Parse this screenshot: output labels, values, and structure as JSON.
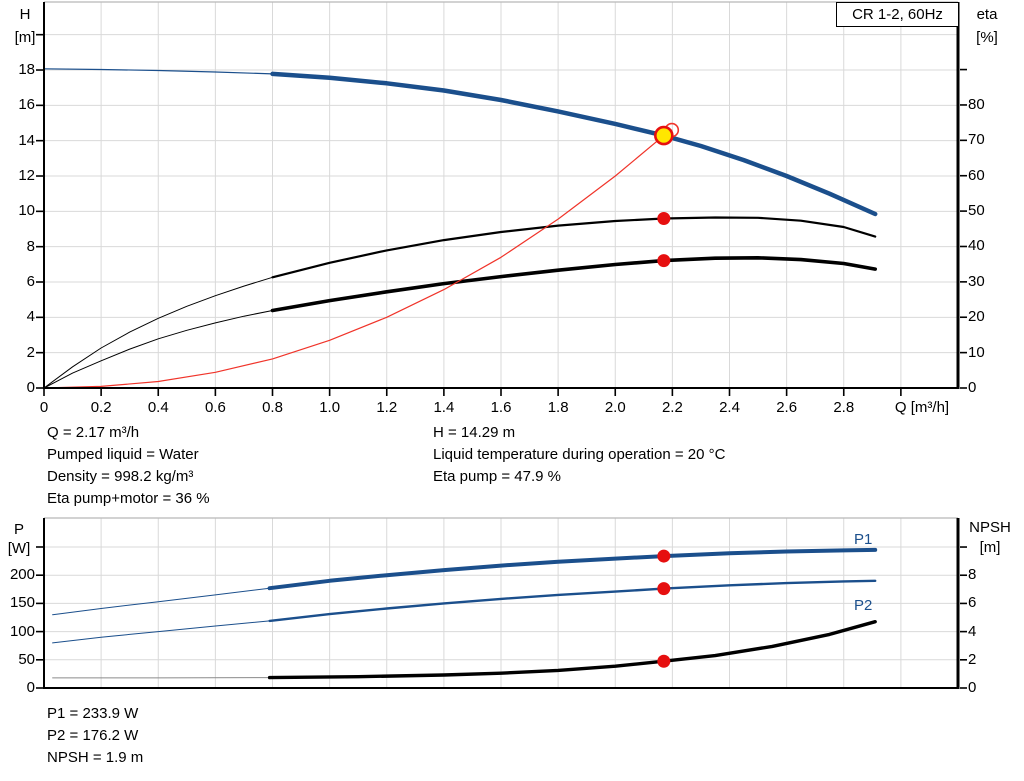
{
  "window": {
    "product_box_label": "CR 1-2, 60Hz"
  },
  "colors": {
    "curve_blue": "#1b4f8c",
    "curve_black": "#000000",
    "curve_gray": "#8a8a8a",
    "red_line": "#f0342a",
    "red_dot": "#e60f0f",
    "duty_yellow": "#ffe600",
    "grid": "#d9d9d9",
    "frame": "#000000",
    "border_top": "#b8b8b8",
    "label_blue": "#1b4f8c",
    "text": "#000000"
  },
  "top_chart": {
    "left_axis_title": [
      "H",
      "[m]"
    ],
    "right_axis_title": [
      "eta",
      "[%]"
    ],
    "x_axis_title": "Q [m³/h]",
    "left_ticks": [
      {
        "v": 0,
        "label": "0"
      },
      {
        "v": 2,
        "label": "2"
      },
      {
        "v": 4,
        "label": "4"
      },
      {
        "v": 6,
        "label": "6"
      },
      {
        "v": 8,
        "label": "8"
      },
      {
        "v": 10,
        "label": "10"
      },
      {
        "v": 12,
        "label": "12"
      },
      {
        "v": 14,
        "label": "14"
      },
      {
        "v": 16,
        "label": "16"
      },
      {
        "v": 18,
        "label": "18"
      },
      {
        "v": 20,
        "label": ""
      }
    ],
    "right_ticks": [
      {
        "v": 0,
        "label": "0"
      },
      {
        "v": 10,
        "label": "10"
      },
      {
        "v": 20,
        "label": "20"
      },
      {
        "v": 30,
        "label": "30"
      },
      {
        "v": 40,
        "label": "40"
      },
      {
        "v": 50,
        "label": "50"
      },
      {
        "v": 60,
        "label": "60"
      },
      {
        "v": 70,
        "label": "70"
      },
      {
        "v": 80,
        "label": "80"
      },
      {
        "v": 90,
        "label": ""
      }
    ],
    "x_ticks": [
      {
        "v": 0,
        "label": "0"
      },
      {
        "v": 0.2,
        "label": "0.2"
      },
      {
        "v": 0.4,
        "label": "0.4"
      },
      {
        "v": 0.6,
        "label": "0.6"
      },
      {
        "v": 0.8,
        "label": "0.8"
      },
      {
        "v": 1.0,
        "label": "1.0"
      },
      {
        "v": 1.2,
        "label": "1.2"
      },
      {
        "v": 1.4,
        "label": "1.4"
      },
      {
        "v": 1.6,
        "label": "1.6"
      },
      {
        "v": 1.8,
        "label": "1.8"
      },
      {
        "v": 2.0,
        "label": "2.0"
      },
      {
        "v": 2.2,
        "label": "2.2"
      },
      {
        "v": 2.4,
        "label": "2.4"
      },
      {
        "v": 2.6,
        "label": "2.6"
      },
      {
        "v": 2.8,
        "label": "2.8"
      },
      {
        "v": 3.0,
        "label": ""
      }
    ]
  },
  "bottom_chart": {
    "left_axis_title": [
      "P",
      "[W]"
    ],
    "right_axis_title": [
      "NPSH",
      "[m]"
    ],
    "left_ticks": [
      {
        "v": 0,
        "label": "0"
      },
      {
        "v": 50,
        "label": "50"
      },
      {
        "v": 100,
        "label": "100"
      },
      {
        "v": 150,
        "label": "150"
      },
      {
        "v": 200,
        "label": "200"
      },
      {
        "v": 250,
        "label": ""
      }
    ],
    "right_ticks": [
      {
        "v": 0,
        "label": "0"
      },
      {
        "v": 2,
        "label": "2"
      },
      {
        "v": 4,
        "label": "4"
      },
      {
        "v": 6,
        "label": "6"
      },
      {
        "v": 8,
        "label": "8"
      },
      {
        "v": 10,
        "label": ""
      }
    ],
    "x_ticks": [
      {
        "v": 0.2,
        "label": ""
      },
      {
        "v": 0.4,
        "label": ""
      },
      {
        "v": 0.6,
        "label": ""
      },
      {
        "v": 0.8,
        "label": ""
      },
      {
        "v": 1.0,
        "label": ""
      },
      {
        "v": 1.2,
        "label": ""
      },
      {
        "v": 1.4,
        "label": ""
      },
      {
        "v": 1.6,
        "label": ""
      },
      {
        "v": 1.8,
        "label": ""
      },
      {
        "v": 2.0,
        "label": ""
      },
      {
        "v": 2.2,
        "label": ""
      },
      {
        "v": 2.4,
        "label": ""
      },
      {
        "v": 2.6,
        "label": ""
      },
      {
        "v": 2.8,
        "label": ""
      },
      {
        "v": 3.0,
        "label": ""
      }
    ],
    "curve_labels": [
      {
        "text": "P1"
      },
      {
        "text": "P2"
      }
    ]
  },
  "info_top_left": [
    "Q = 2.17 m³/h",
    "Pumped liquid = Water",
    "Density = 998.2 kg/m³",
    "Eta pump+motor = 36 %"
  ],
  "info_top_right": [
    "H = 14.29 m",
    "Liquid temperature during operation = 20 °C",
    "Eta pump = 47.9 %"
  ],
  "info_bottom": [
    "P1 = 233.9 W",
    "P2 = 176.2 W",
    "NPSH = 1.9 m"
  ],
  "chart_data": [
    {
      "type": "line",
      "title": "CR 1-2, 60Hz head and efficiency curves",
      "xlabel": "Q [m³/h]",
      "x_range": [
        0,
        3.2
      ],
      "y_left": {
        "label": "H [m]",
        "range": [
          0,
          21.85
        ]
      },
      "y_right": {
        "label": "eta [%]",
        "range": [
          0,
          109.1
        ]
      },
      "grid": true,
      "duty_point": {
        "q": 2.17,
        "h": 14.29,
        "eta_pump": 47.9,
        "eta_pump_motor": 36
      },
      "series": [
        {
          "name": "h-curve-extended",
          "axis": "left",
          "color": "curve_blue",
          "width": 1.2,
          "points": [
            [
              0,
              18.07
            ],
            [
              0.2,
              18.03
            ],
            [
              0.4,
              17.97
            ],
            [
              0.6,
              17.89
            ],
            [
              0.8,
              17.78
            ]
          ]
        },
        {
          "name": "h-curve",
          "axis": "left",
          "color": "curve_blue",
          "width": 4.5,
          "points": [
            [
              0.8,
              17.78
            ],
            [
              1.0,
              17.56
            ],
            [
              1.2,
              17.25
            ],
            [
              1.4,
              16.84
            ],
            [
              1.6,
              16.3
            ],
            [
              1.8,
              15.66
            ],
            [
              2.0,
              14.95
            ],
            [
              2.17,
              14.29
            ],
            [
              2.3,
              13.7
            ],
            [
              2.45,
              12.9
            ],
            [
              2.6,
              12.0
            ],
            [
              2.75,
              11.0
            ],
            [
              2.91,
              9.85
            ]
          ]
        },
        {
          "name": "eta-pump-curve-extended",
          "axis": "right",
          "color": "curve_black",
          "width": 1,
          "points": [
            [
              0,
              0
            ],
            [
              0.1,
              6.0
            ],
            [
              0.2,
              11.3
            ],
            [
              0.3,
              15.8
            ],
            [
              0.4,
              19.7
            ],
            [
              0.5,
              23.1
            ],
            [
              0.6,
              26.1
            ],
            [
              0.7,
              28.8
            ],
            [
              0.8,
              31.3
            ]
          ]
        },
        {
          "name": "eta-pump-curve",
          "axis": "right",
          "color": "curve_black",
          "width": 2.2,
          "points": [
            [
              0.8,
              31.3
            ],
            [
              1.0,
              35.4
            ],
            [
              1.2,
              38.9
            ],
            [
              1.4,
              41.8
            ],
            [
              1.6,
              44.1
            ],
            [
              1.8,
              45.9
            ],
            [
              2.0,
              47.2
            ],
            [
              2.17,
              47.9
            ],
            [
              2.35,
              48.2
            ],
            [
              2.5,
              48.1
            ],
            [
              2.65,
              47.3
            ],
            [
              2.8,
              45.5
            ],
            [
              2.91,
              42.8
            ]
          ]
        },
        {
          "name": "eta-pump-motor-curve-extended",
          "axis": "right",
          "color": "curve_black",
          "width": 1,
          "points": [
            [
              0,
              0
            ],
            [
              0.1,
              4.2
            ],
            [
              0.2,
              7.7
            ],
            [
              0.3,
              11.0
            ],
            [
              0.4,
              13.9
            ],
            [
              0.5,
              16.3
            ],
            [
              0.6,
              18.4
            ],
            [
              0.7,
              20.3
            ],
            [
              0.8,
              21.9
            ]
          ]
        },
        {
          "name": "eta-pump-motor-curve",
          "axis": "right",
          "color": "curve_black",
          "width": 3.6,
          "points": [
            [
              0.8,
              21.9
            ],
            [
              1.0,
              24.7
            ],
            [
              1.2,
              27.2
            ],
            [
              1.4,
              29.5
            ],
            [
              1.6,
              31.5
            ],
            [
              1.8,
              33.3
            ],
            [
              2.0,
              34.9
            ],
            [
              2.17,
              36.0
            ],
            [
              2.35,
              36.7
            ],
            [
              2.5,
              36.8
            ],
            [
              2.65,
              36.3
            ],
            [
              2.8,
              35.2
            ],
            [
              2.91,
              33.6
            ]
          ]
        },
        {
          "name": "system-curve",
          "axis": "left",
          "color": "red_line",
          "width": 1.2,
          "points": [
            [
              0,
              0
            ],
            [
              0.2,
              0.09
            ],
            [
              0.4,
              0.37
            ],
            [
              0.6,
              0.89
            ],
            [
              0.8,
              1.65
            ],
            [
              1.0,
              2.7
            ],
            [
              1.2,
              4.0
            ],
            [
              1.4,
              5.57
            ],
            [
              1.6,
              7.4
            ],
            [
              1.8,
              9.56
            ],
            [
              2.0,
              12.0
            ],
            [
              2.17,
              14.29
            ],
            [
              2.198,
              14.6
            ]
          ]
        }
      ],
      "markers": [
        {
          "shape": "open",
          "name": "requested-duty-point",
          "axis": "left",
          "q": 2.198,
          "v": 14.6
        },
        {
          "shape": "dot",
          "name": "eta-pump-point",
          "axis": "right",
          "q": 2.17,
          "v": 47.9
        },
        {
          "shape": "dot",
          "name": "eta-pump-motor-point",
          "axis": "right",
          "q": 2.17,
          "v": 36.0
        },
        {
          "shape": "duty",
          "name": "duty-point",
          "axis": "left",
          "q": 2.17,
          "v": 14.29
        }
      ]
    },
    {
      "type": "line",
      "title": "Power and NPSH curves",
      "xlabel": "Q [m³/h]",
      "x_range": [
        0,
        3.2
      ],
      "y_left": {
        "label": "P [W]",
        "range": [
          0,
          301.4
        ]
      },
      "y_right": {
        "label": "NPSH [m]",
        "range": [
          0,
          12.06
        ]
      },
      "grid": true,
      "duty_values": {
        "p1": 233.9,
        "p2": 176.2,
        "npsh": 1.9
      },
      "series": [
        {
          "name": "p1-curve-extended",
          "axis": "left",
          "color": "curve_blue",
          "width": 1,
          "points": [
            [
              0.03,
              130
            ],
            [
              0.2,
              141
            ],
            [
              0.4,
              153
            ],
            [
              0.6,
              165
            ],
            [
              0.79,
              177
            ]
          ]
        },
        {
          "name": "p1-curve",
          "axis": "left",
          "color": "curve_blue",
          "width": 4,
          "points": [
            [
              0.79,
              177
            ],
            [
              1.0,
              190
            ],
            [
              1.2,
              200
            ],
            [
              1.4,
              209
            ],
            [
              1.6,
              217
            ],
            [
              1.8,
              224
            ],
            [
              2.0,
              229.5
            ],
            [
              2.17,
              233.9
            ],
            [
              2.4,
              239
            ],
            [
              2.6,
              242
            ],
            [
              2.8,
              244
            ],
            [
              2.91,
              244.8
            ]
          ]
        },
        {
          "name": "p2-curve-extended",
          "axis": "left",
          "color": "curve_blue",
          "width": 1,
          "points": [
            [
              0.03,
              80
            ],
            [
              0.2,
              90
            ],
            [
              0.4,
              100
            ],
            [
              0.6,
              110
            ],
            [
              0.79,
              119
            ]
          ]
        },
        {
          "name": "p2-curve",
          "axis": "left",
          "color": "curve_blue",
          "width": 2.4,
          "points": [
            [
              0.79,
              119
            ],
            [
              1.0,
              131
            ],
            [
              1.2,
              141
            ],
            [
              1.4,
              150
            ],
            [
              1.6,
              158
            ],
            [
              1.8,
              165
            ],
            [
              2.0,
              171
            ],
            [
              2.17,
              176.2
            ],
            [
              2.4,
              182
            ],
            [
              2.6,
              186
            ],
            [
              2.8,
              189
            ],
            [
              2.91,
              190
            ]
          ]
        },
        {
          "name": "npsh-curve-extended",
          "axis": "right",
          "color": "curve_gray",
          "width": 1,
          "points": [
            [
              0.03,
              0.72
            ],
            [
              0.4,
              0.72
            ],
            [
              0.79,
              0.74
            ]
          ]
        },
        {
          "name": "npsh-curve",
          "axis": "right",
          "color": "curve_black",
          "width": 3.4,
          "points": [
            [
              0.79,
              0.74
            ],
            [
              1.1,
              0.8
            ],
            [
              1.4,
              0.92
            ],
            [
              1.6,
              1.05
            ],
            [
              1.8,
              1.25
            ],
            [
              2.0,
              1.55
            ],
            [
              2.17,
              1.9
            ],
            [
              2.35,
              2.3
            ],
            [
              2.55,
              2.95
            ],
            [
              2.75,
              3.8
            ],
            [
              2.91,
              4.7
            ]
          ]
        }
      ],
      "markers": [
        {
          "shape": "dot",
          "name": "p1-point",
          "axis": "left",
          "q": 2.17,
          "v": 233.9
        },
        {
          "shape": "dot",
          "name": "p2-point",
          "axis": "left",
          "q": 2.17,
          "v": 176.2
        },
        {
          "shape": "dot",
          "name": "npsh-point",
          "axis": "right",
          "q": 2.17,
          "v": 1.9
        }
      ]
    }
  ]
}
